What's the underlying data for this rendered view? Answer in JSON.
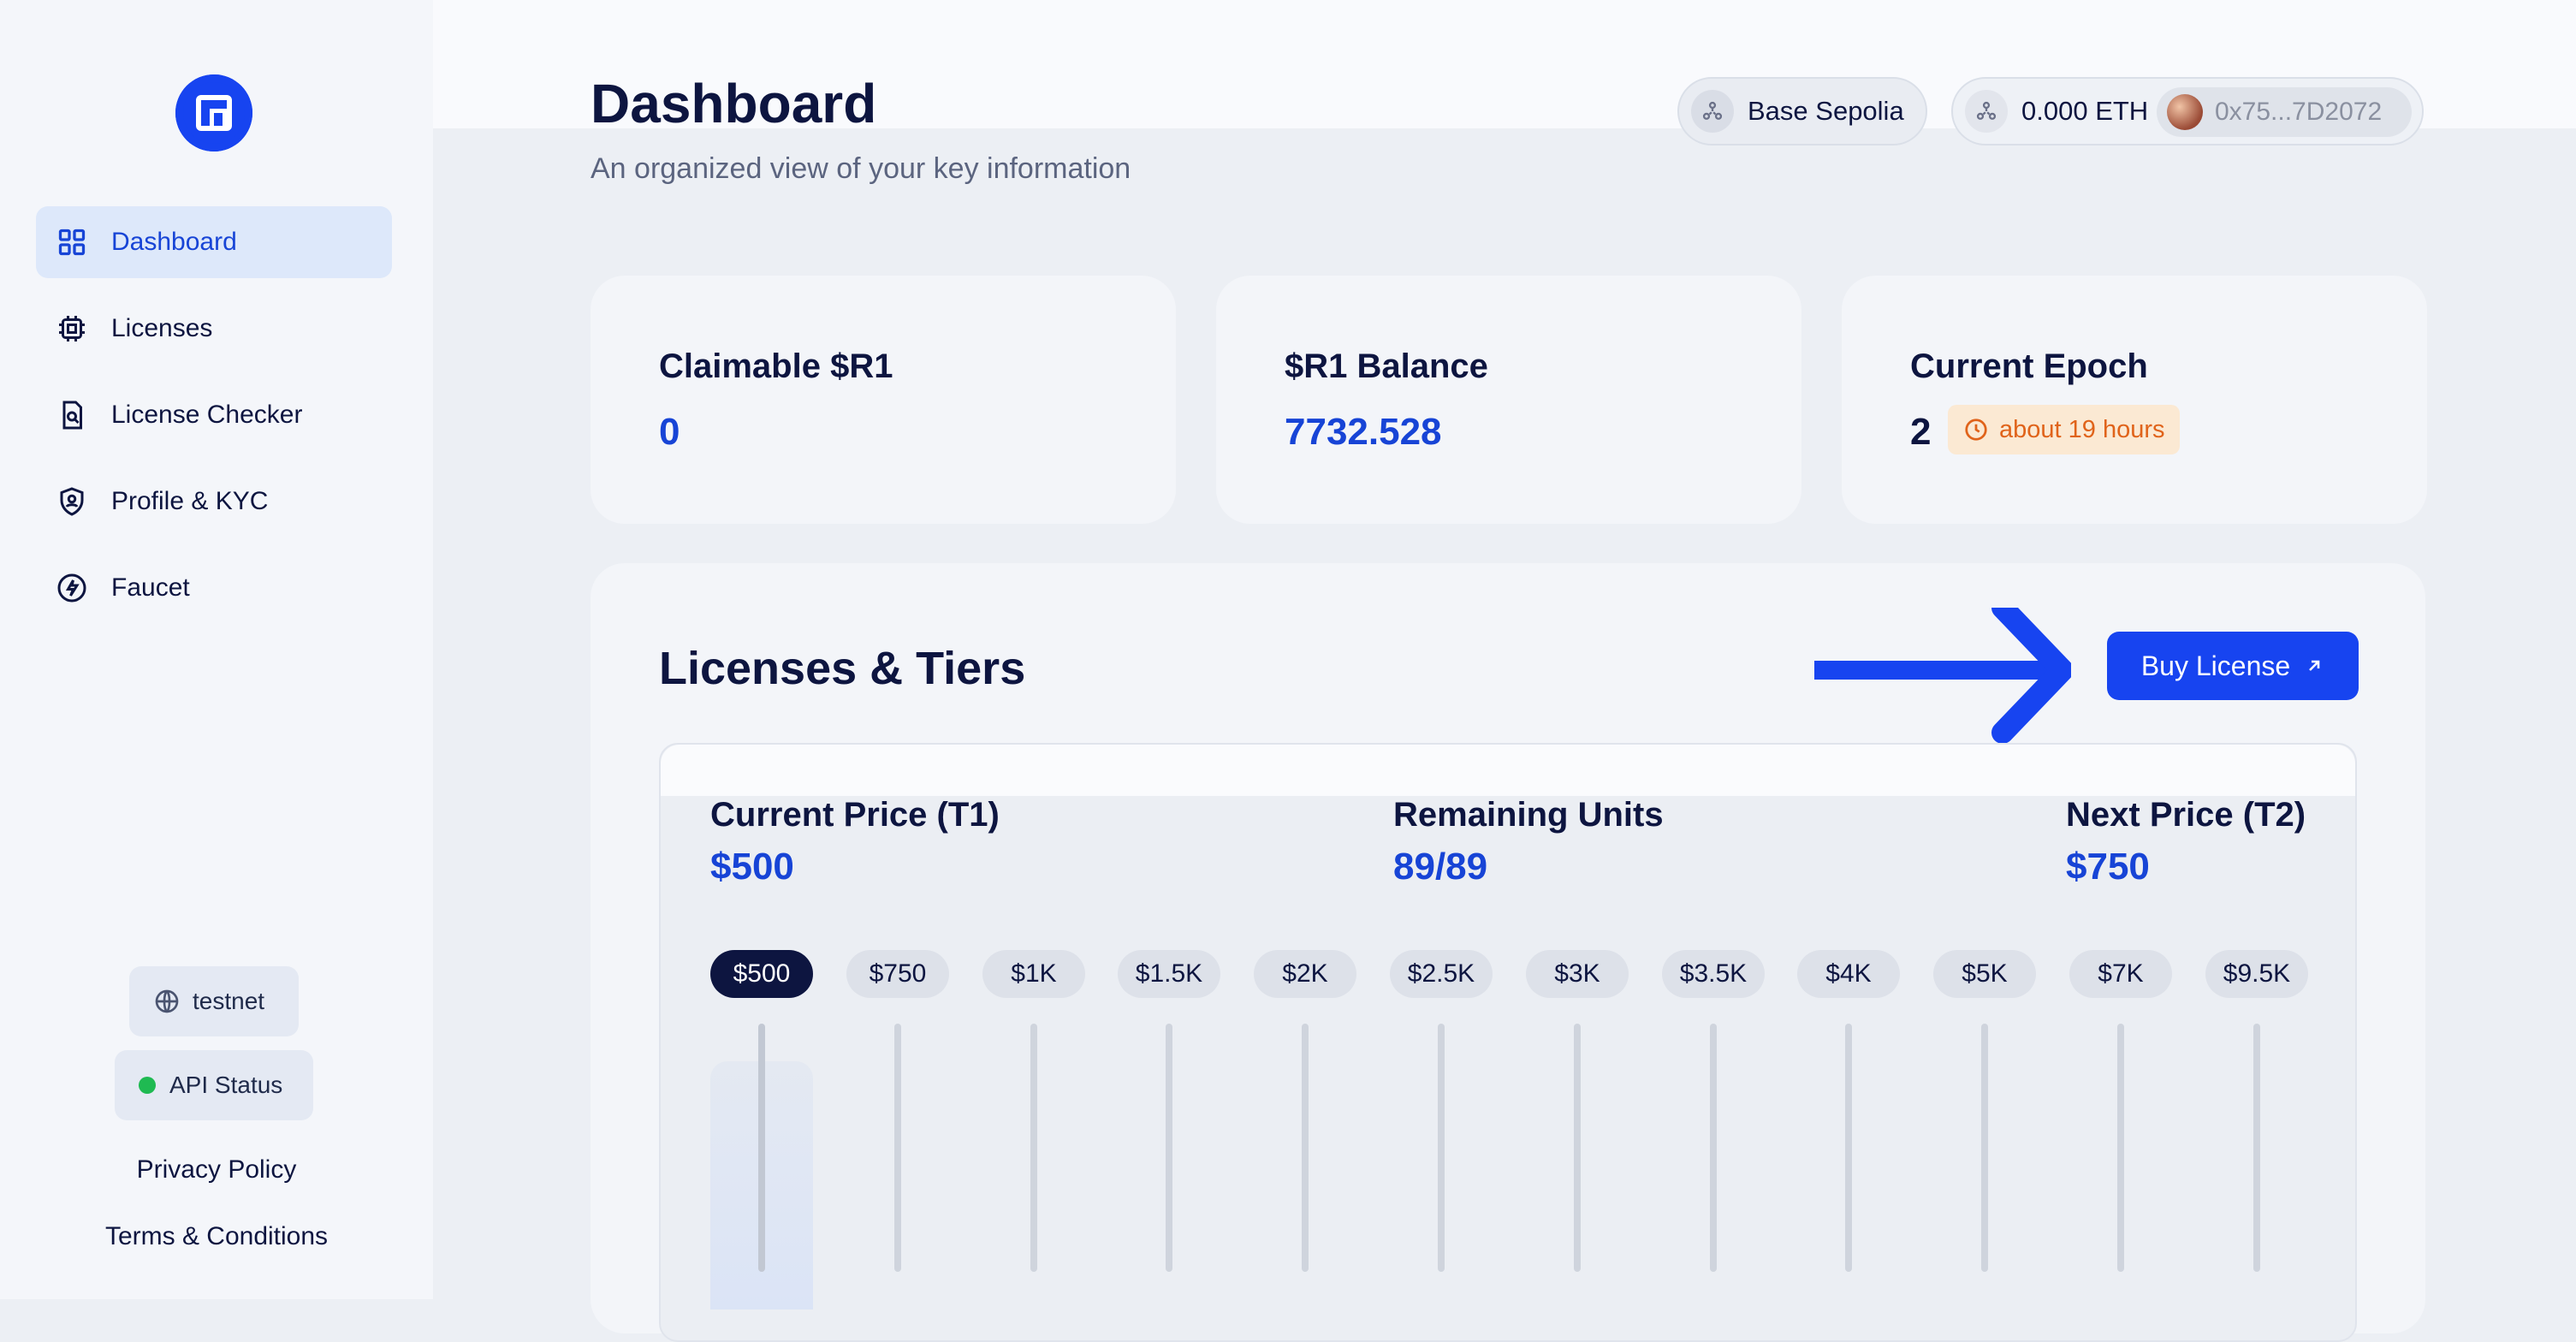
{
  "sidebar": {
    "logo": "r1-logo-icon",
    "items": [
      {
        "label": "Dashboard",
        "icon": "grid-icon",
        "active": true
      },
      {
        "label": "Licenses",
        "icon": "chip-icon",
        "active": false
      },
      {
        "label": "License Checker",
        "icon": "document-search-icon",
        "active": false
      },
      {
        "label": "Profile & KYC",
        "icon": "shield-user-icon",
        "active": false
      },
      {
        "label": "Faucet",
        "icon": "bolt-icon",
        "active": false
      }
    ],
    "network_label": "testnet",
    "api_status_label": "API Status",
    "privacy": "Privacy Policy",
    "terms": "Terms & Conditions"
  },
  "header": {
    "title": "Dashboard",
    "subtitle": "An organized view of your key information",
    "network": "Base Sepolia",
    "balance": "0.000 ETH",
    "address": "0x75...7D2072"
  },
  "stats": {
    "claimable": {
      "label": "Claimable $R1",
      "value": "0"
    },
    "balance": {
      "label": "$R1 Balance",
      "value": "7732.528"
    },
    "epoch": {
      "label": "Current Epoch",
      "value": "2",
      "badge": "about 19 hours"
    }
  },
  "licenses": {
    "title": "Licenses & Tiers",
    "buy_label": "Buy License",
    "current_price_label": "Current Price (T1)",
    "current_price": "$500",
    "remaining_label": "Remaining Units",
    "remaining": "89/89",
    "next_price_label": "Next Price (T2)",
    "next_price": "$750",
    "tiers": [
      "$500",
      "$750",
      "$1K",
      "$1.5K",
      "$2K",
      "$2.5K",
      "$3K",
      "$3.5K",
      "$4K",
      "$5K",
      "$7K",
      "$9.5K"
    ],
    "active_tier": 0
  },
  "colors": {
    "accent": "#1744f0",
    "text": "#0d1540",
    "warning": "#e0631a",
    "status_ok": "#1fba52"
  }
}
